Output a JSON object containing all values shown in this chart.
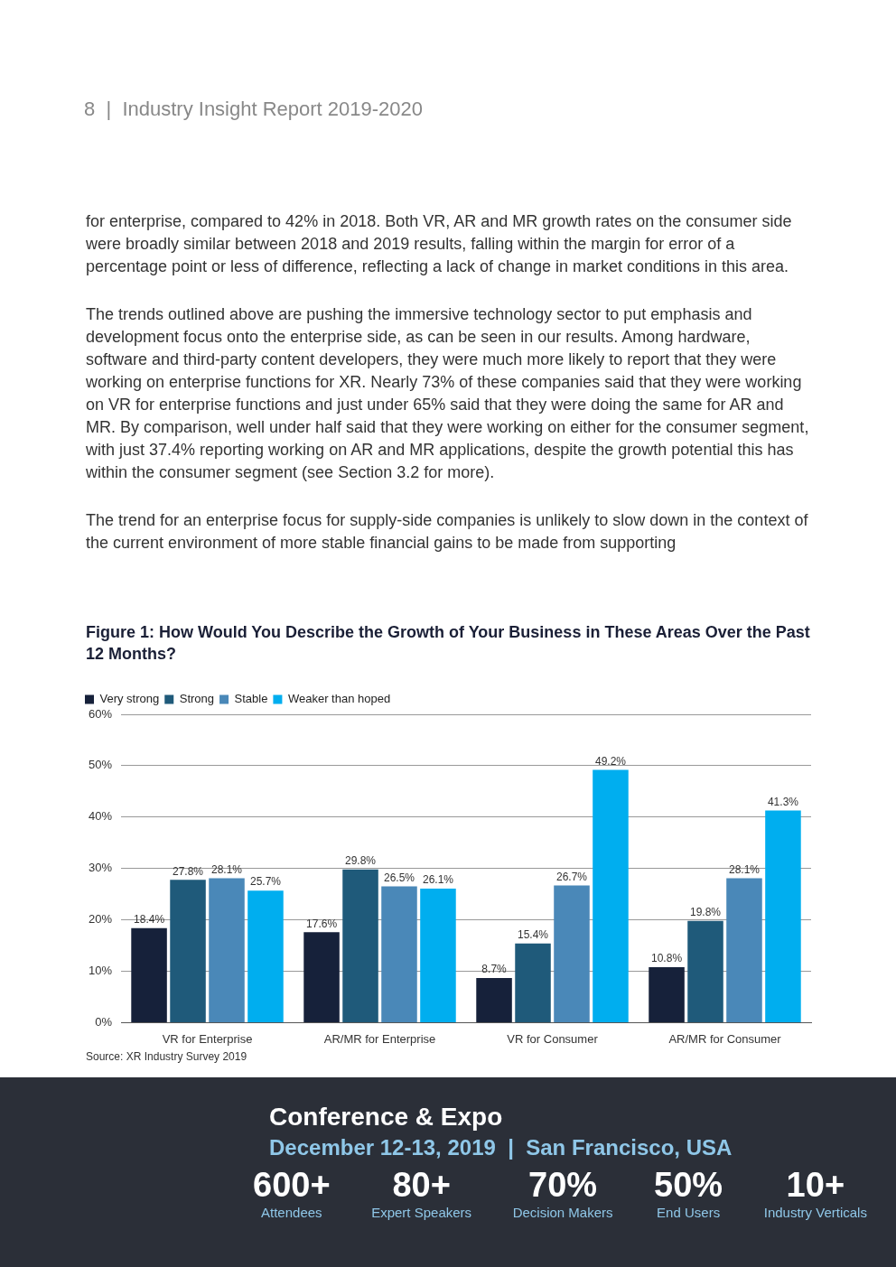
{
  "chart_data": {
    "type": "bar",
    "title": "Figure 1: How Would You Describe the Growth of Your Business in These Areas Over the Past 12 Months?",
    "categories": [
      "VR for Enterprise",
      "AR/MR for Enterprise",
      "VR for Consumer",
      "AR/MR for Consumer"
    ],
    "series": [
      {
        "name": "Very strong",
        "color": "#16213a",
        "values": [
          18.4,
          17.6,
          8.7,
          10.8
        ],
        "value_labels": [
          "18.4%",
          "17.6%",
          "8.7%",
          "10.8%"
        ]
      },
      {
        "name": "Strong",
        "color": "#1f5a7a",
        "values": [
          27.8,
          29.8,
          15.4,
          19.8
        ],
        "value_labels": [
          "27.8%",
          "29.8%",
          "15.4%",
          "19.8%"
        ]
      },
      {
        "name": "Stable",
        "color": "#4a88b8",
        "values": [
          28.1,
          26.5,
          26.7,
          28.1
        ],
        "value_labels": [
          "28.1%",
          "26.5%",
          "26.7%",
          "28.1%"
        ]
      },
      {
        "name": "Weaker than hoped",
        "color": "#00aeef",
        "values": [
          25.7,
          26.1,
          49.2,
          41.3
        ],
        "value_labels": [
          "25.7%",
          "26.1%",
          "49.2%",
          "41.3%"
        ]
      }
    ],
    "ylim": [
      0,
      60
    ],
    "yticks": [
      {
        "value": 0,
        "label": "0%"
      },
      {
        "value": 10,
        "label": "10%"
      },
      {
        "value": 20,
        "label": "20%"
      },
      {
        "value": 30,
        "label": "30%"
      },
      {
        "value": 40,
        "label": "40%"
      },
      {
        "value": 50,
        "label": "50%"
      },
      {
        "value": 60,
        "label": "60%"
      }
    ],
    "grid": "y",
    "legend": "top left",
    "annotations": [
      "8  |  Industry Insight Report 2019-2020",
      "for enterprise, compared to 42% in 2018. Both VR, AR and MR growth rates on the consumer side were broadly similar between 2018 and 2019 results, falling within the margin for error of a percentage point or less of difference, reflecting a lack of change in market conditions in this area.",
      "The trends outlined above are pushing the immersive technology sector to put emphasis and development focus onto the enterprise side, as can be seen in our results. Among hardware, software and third-party content developers, they were much more likely to report that they were working on enterprise functions for XR. Nearly 73% of these companies said that they were working on VR for enterprise functions and just under 65% said that they were doing the same for AR and MR. By comparison, well under half said that they were working on either for the consumer segment, with just 37.4% reporting working on AR and MR applications, despite the growth potential this has within the consumer segment (see Section 3.2 for more).",
      "The trend for an enterprise focus for supply-side companies is unlikely to slow down in the context of the current environment of more stable financial gains to be made from supporting",
      "Source: XR Industry Survey 2019",
      "Conference & Expo",
      "December 12-13, 2019  |  San Francisco, USA",
      "600+",
      "Attendees",
      "80+",
      "Expert Speakers",
      "70%",
      "Decision Makers",
      "50%",
      "End Users",
      "10+",
      "Industry Verticals"
    ]
  }
}
